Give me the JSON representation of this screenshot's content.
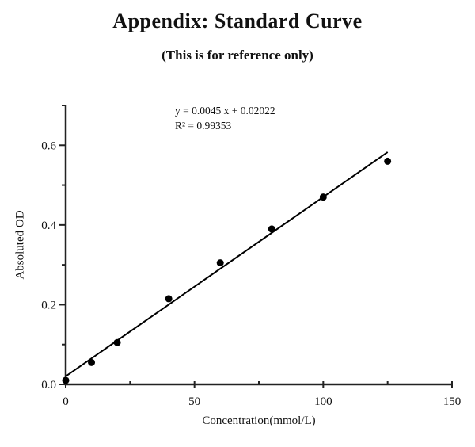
{
  "chart_data": {
    "type": "scatter",
    "title": "Appendix: Standard Curve",
    "subtitle": "(This is for reference only)",
    "xlabel": "Concentration(mmol/L)",
    "ylabel": "Absoluted OD",
    "xlim": [
      0,
      150
    ],
    "ylim": [
      0,
      0.7
    ],
    "x_major_ticks": [
      0,
      50,
      100,
      150
    ],
    "x_minor_ticks": [
      25,
      75,
      125
    ],
    "y_major_ticks": [
      0,
      0.2,
      0.4,
      0.6
    ],
    "y_minor_ticks": [
      0.1,
      0.3,
      0.5,
      0.7
    ],
    "points": [
      [
        0,
        0.01
      ],
      [
        10,
        0.055
      ],
      [
        20,
        0.105
      ],
      [
        40,
        0.215
      ],
      [
        60,
        0.305
      ],
      [
        80,
        0.39
      ],
      [
        100,
        0.47
      ],
      [
        125,
        0.56
      ]
    ],
    "fit_line": {
      "slope": 0.0045,
      "intercept": 0.02022,
      "x_start": 0,
      "x_end": 125
    },
    "annotation": {
      "equation": "y = 0.0045 x + 0.02022",
      "r_squared": "R² = 0.99353"
    },
    "grid": false,
    "legend": "none",
    "colors": {
      "points": "#000000",
      "line": "#000000",
      "axis": "#222222"
    }
  }
}
